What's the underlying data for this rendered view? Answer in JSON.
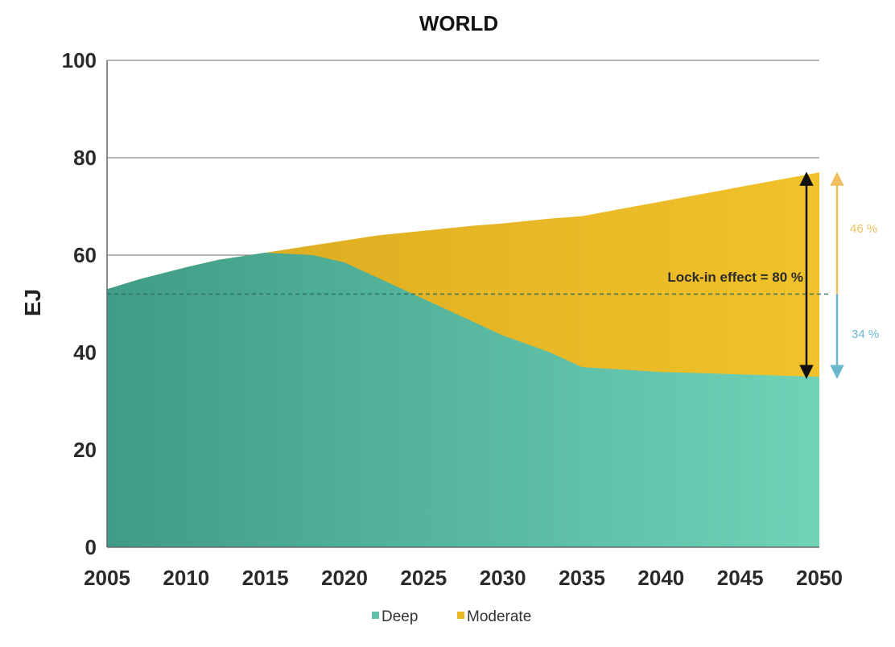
{
  "chart_data": {
    "type": "area",
    "title": "WORLD",
    "xlabel": "",
    "ylabel": "EJ",
    "xlim": [
      2005,
      2050
    ],
    "ylim": [
      0,
      100
    ],
    "x_ticks": [
      "2005",
      "2010",
      "2015",
      "2020",
      "2025",
      "2030",
      "2035",
      "2040",
      "2045",
      "2050"
    ],
    "y_ticks": [
      "0",
      "20",
      "40",
      "60",
      "80",
      "100"
    ],
    "grid": true,
    "legend_position": "bottom",
    "series": [
      {
        "name": "Deep",
        "color": "#5fbfa8",
        "x": [
          2005,
          2007,
          2010,
          2012,
          2015,
          2018,
          2020,
          2022,
          2025,
          2028,
          2030,
          2033,
          2035,
          2040,
          2045,
          2050
        ],
        "values": [
          53,
          55,
          57.5,
          59,
          60.5,
          60,
          58.5,
          55.5,
          51,
          46.5,
          43.5,
          40,
          37,
          36,
          35.5,
          35
        ]
      },
      {
        "name": "Moderate",
        "color": "#e8b820",
        "x": [
          2005,
          2007,
          2010,
          2012,
          2015,
          2018,
          2020,
          2022,
          2025,
          2028,
          2030,
          2033,
          2035,
          2040,
          2045,
          2050
        ],
        "values": [
          53,
          55,
          57.5,
          59,
          60.5,
          62,
          63,
          64,
          65,
          66,
          66.5,
          67.5,
          68,
          71,
          74,
          77
        ]
      }
    ],
    "reference_line": {
      "y": 52,
      "style": "dashed"
    },
    "annotations": {
      "lock_in": "Lock-in effect = 80 %",
      "moderate_pct": "46 %",
      "deep_pct": "34 %"
    }
  }
}
